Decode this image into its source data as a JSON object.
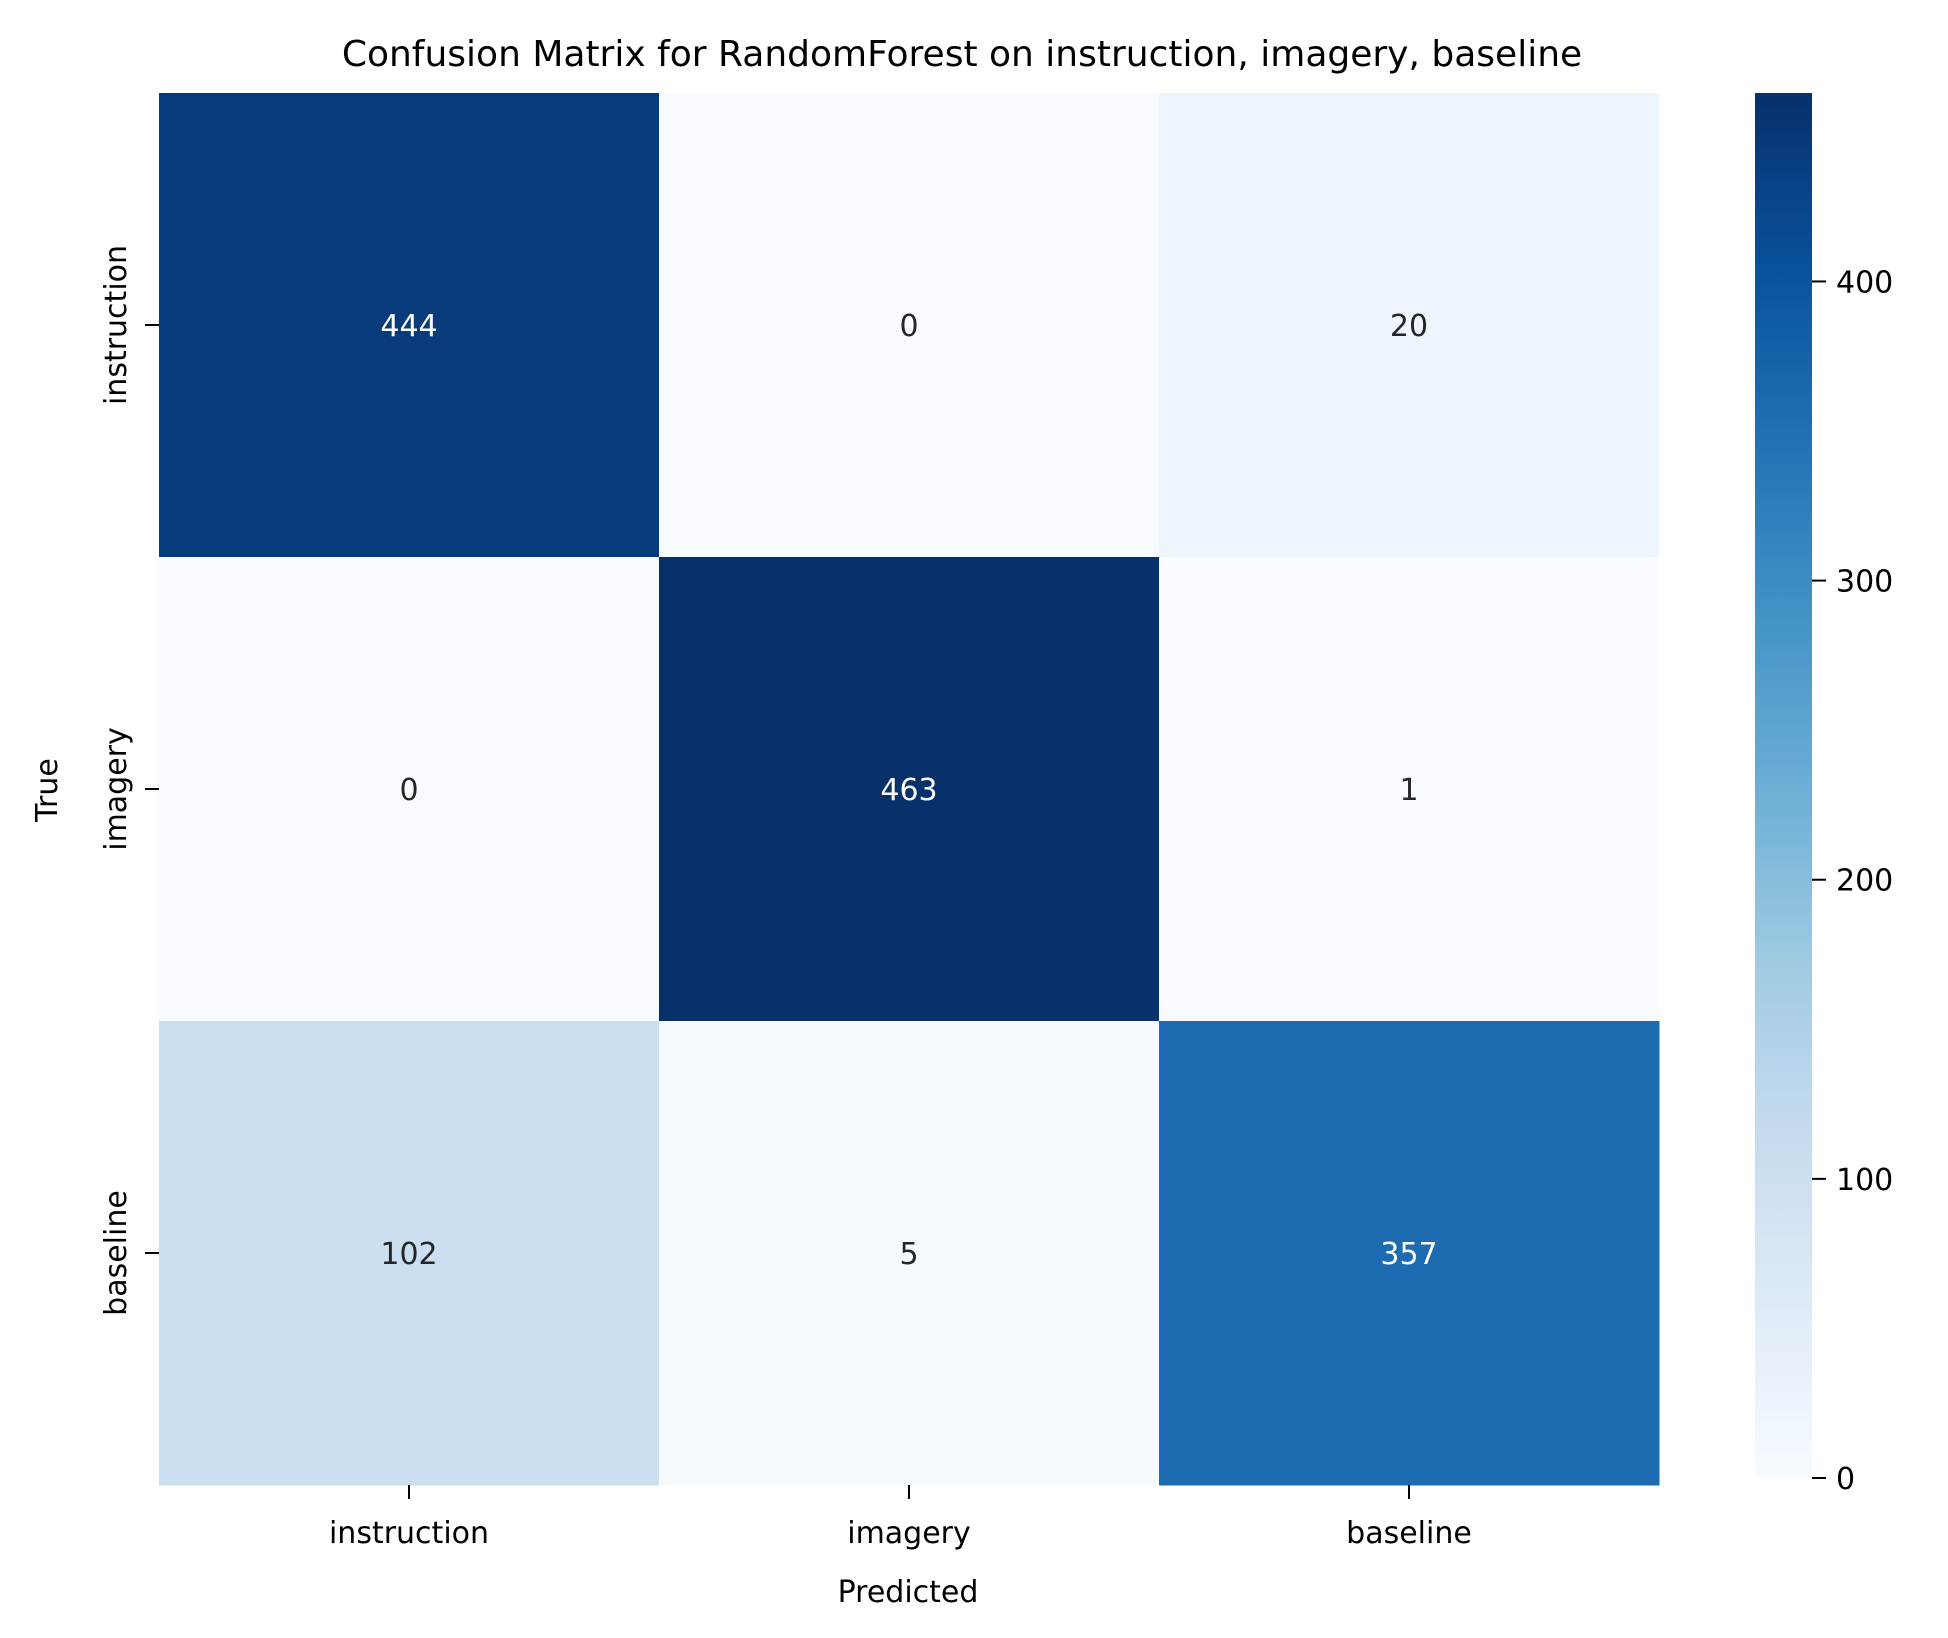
{
  "chart_data": {
    "type": "heatmap",
    "title": "Confusion Matrix for RandomForest on instruction, imagery, baseline",
    "xlabel": "Predicted",
    "ylabel": "True",
    "x_categories": [
      "instruction",
      "imagery",
      "baseline"
    ],
    "y_categories": [
      "instruction",
      "imagery",
      "baseline"
    ],
    "values": [
      [
        444,
        0,
        20
      ],
      [
        0,
        463,
        1
      ],
      [
        102,
        5,
        357
      ]
    ],
    "colormap": "Blues",
    "colorbar": {
      "range": [
        0,
        463
      ],
      "ticks": [
        0,
        100,
        200,
        300,
        400
      ]
    },
    "colors": {
      "low": "#f7fbff",
      "high": "#08306b"
    }
  }
}
